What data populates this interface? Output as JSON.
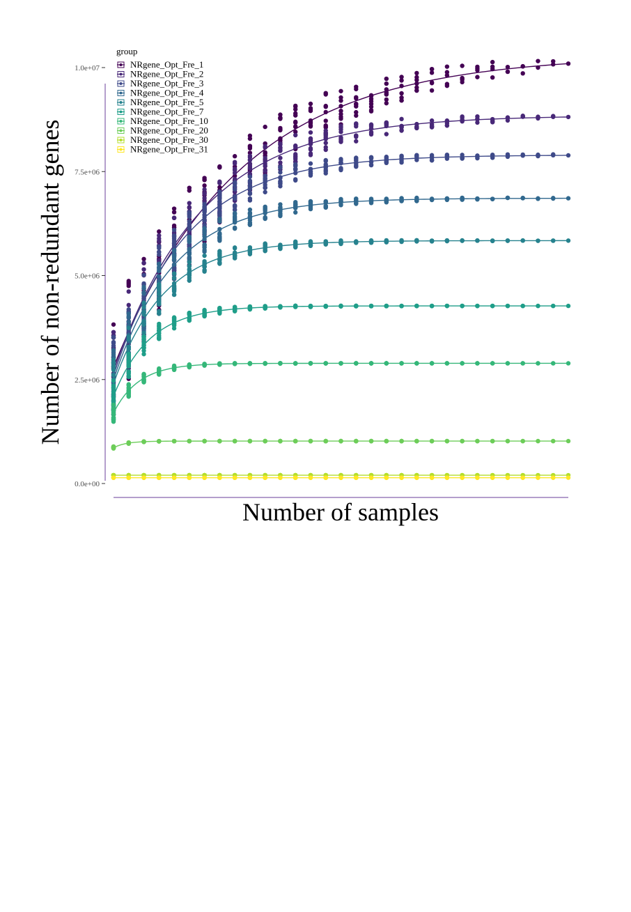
{
  "chart_data": {
    "type": "line",
    "title": "",
    "xlabel": "Number of samples",
    "ylabel": "Number of non-redundant genes",
    "ylim": [
      0,
      10000000
    ],
    "xlim": [
      1,
      31
    ],
    "yticks": [
      {
        "value": 0,
        "label": "0.0e+00"
      },
      {
        "value": 2500000,
        "label": "2.5e+06"
      },
      {
        "value": 5000000,
        "label": "5.0e+06"
      },
      {
        "value": 7500000,
        "label": "7.5e+06"
      },
      {
        "value": 10000000,
        "label": "1.0e+07"
      }
    ],
    "x_tick_labels_shown": false,
    "grid": false,
    "legend": {
      "title": "group",
      "position": "top-left"
    },
    "x": [
      1,
      2,
      3,
      4,
      5,
      6,
      7,
      8,
      9,
      10,
      11,
      12,
      13,
      14,
      15,
      16,
      17,
      18,
      19,
      20,
      21,
      22,
      23,
      24,
      25,
      26,
      27,
      28,
      29,
      30,
      31
    ],
    "series": [
      {
        "name": "NRgene_Opt_Fre_1",
        "color": "#440154",
        "start": 2800000,
        "plateau": 10300000,
        "k": 0.12
      },
      {
        "name": "NRgene_Opt_Fre_2",
        "color": "#482878",
        "start": 2700000,
        "plateau": 8850000,
        "k": 0.17
      },
      {
        "name": "NRgene_Opt_Fre_3",
        "color": "#3E4A89",
        "start": 2600000,
        "plateau": 7900000,
        "k": 0.21
      },
      {
        "name": "NRgene_Opt_Fre_4",
        "color": "#31688E",
        "start": 2500000,
        "plateau": 6860000,
        "k": 0.25
      },
      {
        "name": "NRgene_Opt_Fre_5",
        "color": "#26828E",
        "start": 2400000,
        "plateau": 5840000,
        "k": 0.3
      },
      {
        "name": "NRgene_Opt_Fre_7",
        "color": "#1F9E89",
        "start": 2100000,
        "plateau": 4270000,
        "k": 0.42
      },
      {
        "name": "NRgene_Opt_Fre_10",
        "color": "#35B779",
        "start": 1700000,
        "plateau": 2890000,
        "k": 0.6
      },
      {
        "name": "NRgene_Opt_Fre_20",
        "color": "#6DCD59",
        "start": 860000,
        "plateau": 1020000,
        "k": 1.2
      },
      {
        "name": "NRgene_Opt_Fre_30",
        "color": "#B4DE2C",
        "start": 200000,
        "plateau": 200000,
        "k": 1.0
      },
      {
        "name": "NRgene_Opt_Fre_31",
        "color": "#FDE725",
        "start": 140000,
        "plateau": 140000,
        "k": 1.0
      }
    ]
  }
}
